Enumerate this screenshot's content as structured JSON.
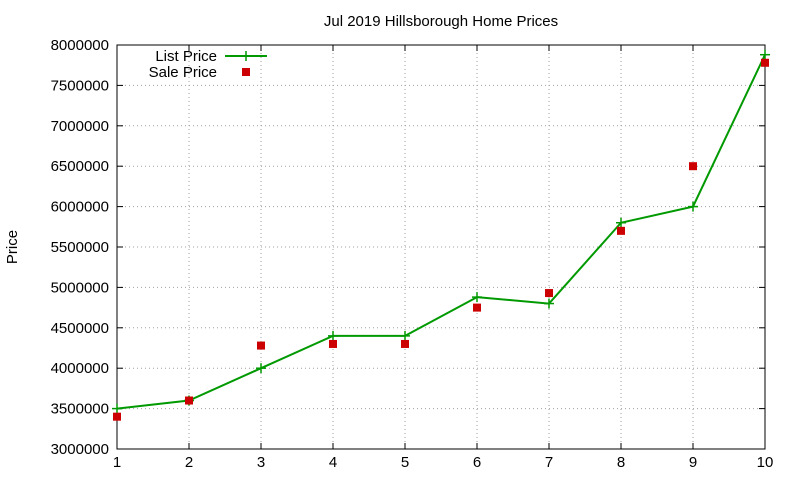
{
  "chart_data": {
    "type": "line",
    "title": "Jul 2019 Hillsborough Home Prices",
    "xlabel": "",
    "ylabel": "Price",
    "xlim": [
      1,
      10
    ],
    "ylim": [
      3000000,
      8000000
    ],
    "x_ticks": [
      1,
      2,
      3,
      4,
      5,
      6,
      7,
      8,
      9,
      10
    ],
    "y_ticks": [
      3000000,
      3500000,
      4000000,
      4500000,
      5000000,
      5500000,
      6000000,
      6500000,
      7000000,
      7500000,
      8000000
    ],
    "grid": true,
    "legend_position": "top-left",
    "series": [
      {
        "name": "List Price",
        "style": "line-with-plus-markers",
        "color": "#009900",
        "x": [
          1,
          2,
          3,
          4,
          5,
          6,
          7,
          8,
          9,
          10
        ],
        "values": [
          3500000,
          3600000,
          4000000,
          4400000,
          4400000,
          4880000,
          4800000,
          5800000,
          6000000,
          7880000
        ]
      },
      {
        "name": "Sale Price",
        "style": "square-markers",
        "color": "#cc0000",
        "x": [
          1,
          2,
          3,
          4,
          5,
          6,
          7,
          8,
          9,
          10
        ],
        "values": [
          3400000,
          3600000,
          4280000,
          4300000,
          4300000,
          4750000,
          4930000,
          5700000,
          6500000,
          7780000
        ]
      }
    ]
  }
}
